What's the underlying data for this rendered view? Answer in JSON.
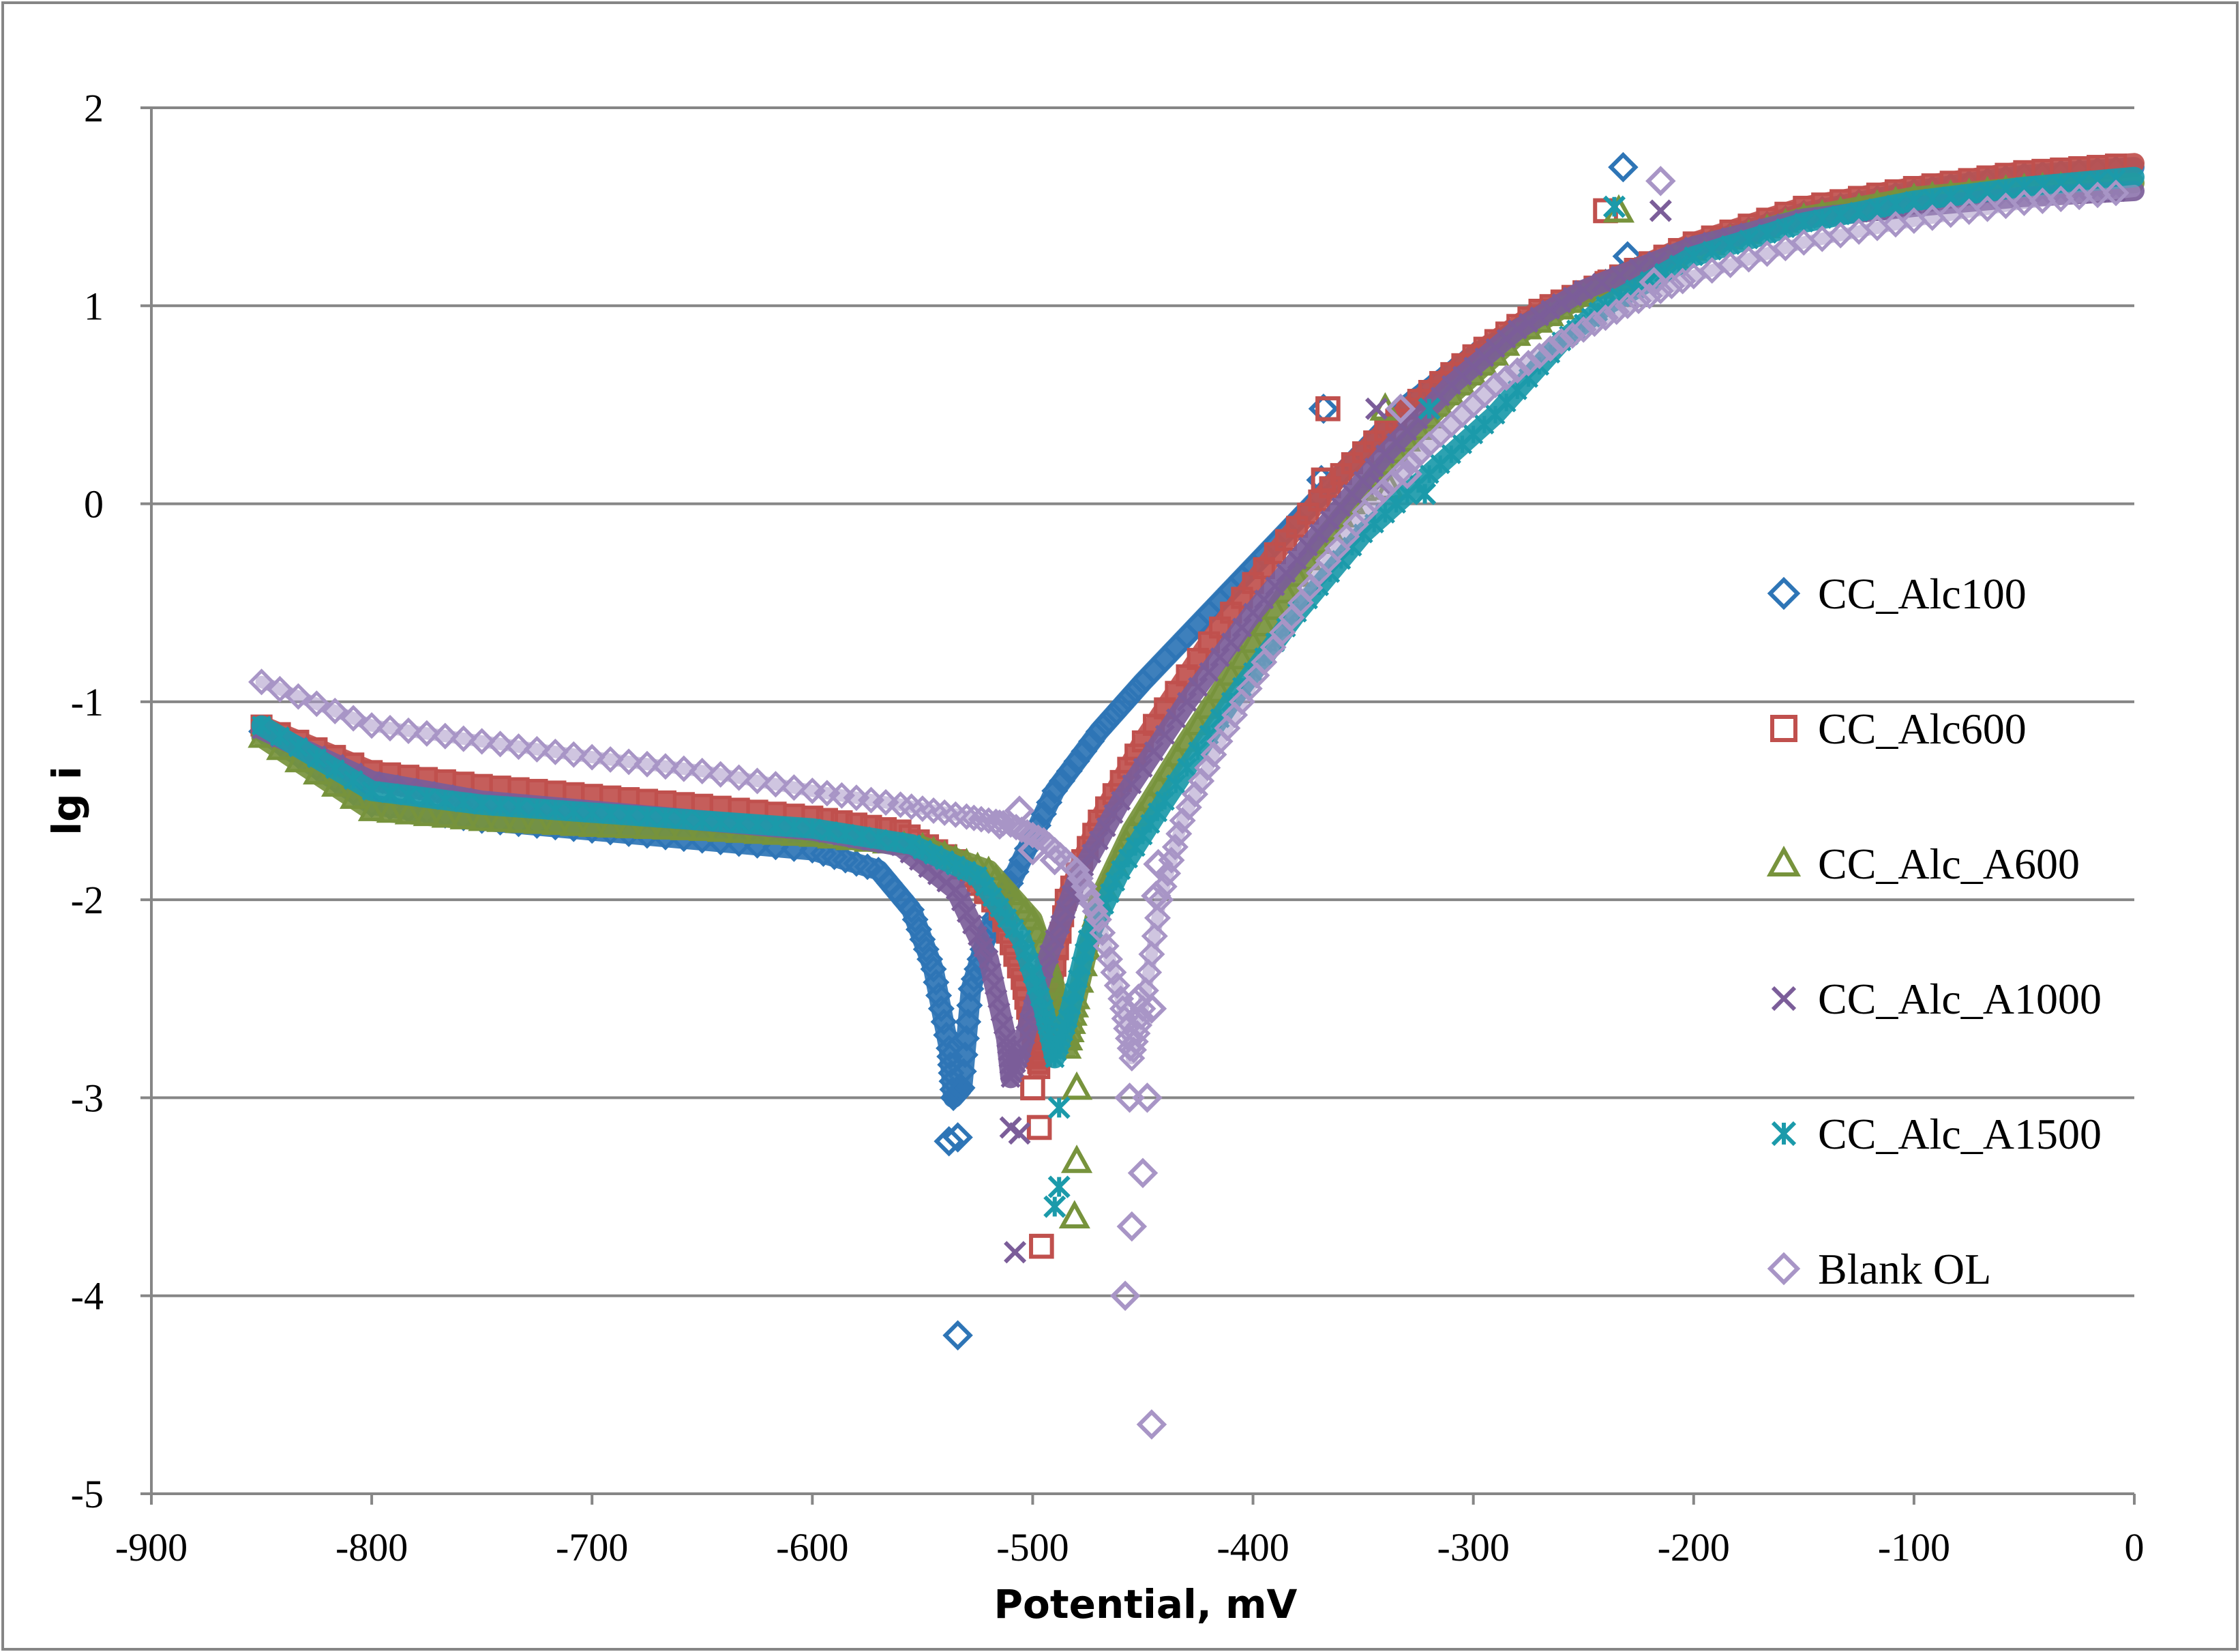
{
  "chart_data": {
    "type": "scatter",
    "title": "",
    "xlabel": "Potential, mV",
    "ylabel": "lg i",
    "xlim": [
      -900,
      0
    ],
    "ylim": [
      -5,
      2
    ],
    "x_ticks": [
      -900,
      -800,
      -700,
      -600,
      -500,
      -400,
      -300,
      -200,
      -100,
      0
    ],
    "y_ticks": [
      2,
      1,
      0,
      -1,
      -2,
      -3,
      -4,
      -5
    ],
    "x_tick_labels": [
      "-900",
      "-800",
      "-700",
      "-600",
      "-500",
      "-400",
      "-300",
      "-200",
      "-100",
      "0"
    ],
    "y_tick_labels": [
      "2",
      "1",
      "0",
      "-1",
      "-2",
      "-3",
      "-4",
      "-5"
    ],
    "grid": "horizontal",
    "legend_position": "right",
    "series": [
      {
        "name": "CC_Alc100",
        "marker": "diamond",
        "color": "#2e75b6",
        "curve": [
          [
            -850,
            -1.15
          ],
          [
            -800,
            -1.52
          ],
          [
            -750,
            -1.6
          ],
          [
            -700,
            -1.65
          ],
          [
            -650,
            -1.7
          ],
          [
            -600,
            -1.75
          ],
          [
            -570,
            -1.85
          ],
          [
            -555,
            -2.05
          ],
          [
            -545,
            -2.35
          ],
          [
            -538,
            -2.75
          ],
          [
            -536,
            -3.0
          ],
          [
            -532,
            -2.95
          ],
          [
            -528,
            -2.45
          ],
          [
            -520,
            -2.15
          ],
          [
            -505,
            -1.8
          ],
          [
            -490,
            -1.45
          ],
          [
            -470,
            -1.15
          ],
          [
            -450,
            -0.9
          ],
          [
            -420,
            -0.55
          ],
          [
            -390,
            -0.2
          ],
          [
            -360,
            0.15
          ],
          [
            -330,
            0.5
          ],
          [
            -300,
            0.75
          ],
          [
            -270,
            0.95
          ],
          [
            -240,
            1.12
          ],
          [
            -200,
            1.3
          ],
          [
            -150,
            1.47
          ],
          [
            -100,
            1.58
          ],
          [
            -50,
            1.66
          ],
          [
            0,
            1.7
          ]
        ],
        "outliers": [
          [
            -232,
            1.7
          ],
          [
            -230,
            1.25
          ],
          [
            -368,
            0.48
          ],
          [
            -369,
            0.12
          ],
          [
            -538,
            -3.22
          ],
          [
            -534,
            -3.2
          ],
          [
            -534,
            -4.2
          ]
        ]
      },
      {
        "name": "CC_Alc600",
        "marker": "square",
        "color": "#c0504d",
        "curve": [
          [
            -850,
            -1.12
          ],
          [
            -800,
            -1.35
          ],
          [
            -750,
            -1.42
          ],
          [
            -700,
            -1.47
          ],
          [
            -650,
            -1.52
          ],
          [
            -600,
            -1.58
          ],
          [
            -560,
            -1.65
          ],
          [
            -535,
            -1.8
          ],
          [
            -515,
            -2.05
          ],
          [
            -505,
            -2.4
          ],
          [
            -500,
            -2.7
          ],
          [
            -497,
            -2.85
          ],
          [
            -492,
            -2.5
          ],
          [
            -485,
            -2.0
          ],
          [
            -470,
            -1.6
          ],
          [
            -450,
            -1.2
          ],
          [
            -420,
            -0.7
          ],
          [
            -390,
            -0.25
          ],
          [
            -360,
            0.15
          ],
          [
            -330,
            0.48
          ],
          [
            -300,
            0.75
          ],
          [
            -270,
            0.98
          ],
          [
            -240,
            1.12
          ],
          [
            -200,
            1.32
          ],
          [
            -150,
            1.5
          ],
          [
            -100,
            1.6
          ],
          [
            -50,
            1.68
          ],
          [
            0,
            1.72
          ]
        ],
        "outliers": [
          [
            -240,
            1.48
          ],
          [
            -238,
            1.12
          ],
          [
            -366,
            0.48
          ],
          [
            -368,
            0.12
          ],
          [
            -500,
            -2.95
          ],
          [
            -497,
            -3.15
          ],
          [
            -496,
            -3.75
          ]
        ]
      },
      {
        "name": "CC_Alc_A600",
        "marker": "triangle",
        "color": "#77933c",
        "curve": [
          [
            -850,
            -1.18
          ],
          [
            -800,
            -1.55
          ],
          [
            -750,
            -1.6
          ],
          [
            -700,
            -1.63
          ],
          [
            -650,
            -1.65
          ],
          [
            -600,
            -1.68
          ],
          [
            -550,
            -1.73
          ],
          [
            -520,
            -1.85
          ],
          [
            -500,
            -2.1
          ],
          [
            -488,
            -2.5
          ],
          [
            -484,
            -2.75
          ],
          [
            -480,
            -2.5
          ],
          [
            -470,
            -2.0
          ],
          [
            -455,
            -1.65
          ],
          [
            -430,
            -1.2
          ],
          [
            -400,
            -0.7
          ],
          [
            -370,
            -0.2
          ],
          [
            -340,
            0.2
          ],
          [
            -310,
            0.55
          ],
          [
            -280,
            0.85
          ],
          [
            -250,
            1.05
          ],
          [
            -200,
            1.28
          ],
          [
            -150,
            1.45
          ],
          [
            -100,
            1.55
          ],
          [
            -50,
            1.6
          ],
          [
            0,
            1.62
          ]
        ],
        "outliers": [
          [
            -234,
            1.48
          ],
          [
            -340,
            0.48
          ],
          [
            -338,
            0.08
          ],
          [
            -480,
            -2.95
          ],
          [
            -480,
            -3.32
          ],
          [
            -481,
            -3.6
          ]
        ]
      },
      {
        "name": "CC_Alc_A1000",
        "marker": "x",
        "color": "#7b5d99",
        "curve": [
          [
            -850,
            -1.14
          ],
          [
            -800,
            -1.4
          ],
          [
            -750,
            -1.5
          ],
          [
            -700,
            -1.55
          ],
          [
            -650,
            -1.6
          ],
          [
            -600,
            -1.65
          ],
          [
            -560,
            -1.73
          ],
          [
            -535,
            -1.95
          ],
          [
            -520,
            -2.3
          ],
          [
            -512,
            -2.7
          ],
          [
            -510,
            -2.9
          ],
          [
            -505,
            -2.75
          ],
          [
            -495,
            -2.35
          ],
          [
            -480,
            -1.9
          ],
          [
            -460,
            -1.5
          ],
          [
            -430,
            -1.0
          ],
          [
            -400,
            -0.55
          ],
          [
            -370,
            -0.15
          ],
          [
            -340,
            0.25
          ],
          [
            -310,
            0.6
          ],
          [
            -280,
            0.88
          ],
          [
            -250,
            1.08
          ],
          [
            -200,
            1.3
          ],
          [
            -150,
            1.44
          ],
          [
            -100,
            1.5
          ],
          [
            -50,
            1.55
          ],
          [
            0,
            1.58
          ]
        ],
        "outliers": [
          [
            -215,
            1.48
          ],
          [
            -344,
            0.48
          ],
          [
            -342,
            0.1
          ],
          [
            -510,
            -3.15
          ],
          [
            -506,
            -3.18
          ],
          [
            -508,
            -3.78
          ]
        ]
      },
      {
        "name": "CC_Alc_A1500",
        "marker": "asterisk",
        "color": "#1b9aaa",
        "curve": [
          [
            -850,
            -1.12
          ],
          [
            -800,
            -1.45
          ],
          [
            -750,
            -1.52
          ],
          [
            -700,
            -1.56
          ],
          [
            -650,
            -1.6
          ],
          [
            -600,
            -1.64
          ],
          [
            -555,
            -1.72
          ],
          [
            -525,
            -1.88
          ],
          [
            -505,
            -2.2
          ],
          [
            -495,
            -2.55
          ],
          [
            -490,
            -2.8
          ],
          [
            -484,
            -2.6
          ],
          [
            -475,
            -2.2
          ],
          [
            -460,
            -1.85
          ],
          [
            -440,
            -1.5
          ],
          [
            -410,
            -1.0
          ],
          [
            -380,
            -0.55
          ],
          [
            -350,
            -0.15
          ],
          [
            -320,
            0.15
          ],
          [
            -290,
            0.45
          ],
          [
            -260,
            0.82
          ],
          [
            -240,
            1.0
          ],
          [
            -200,
            1.25
          ],
          [
            -150,
            1.42
          ],
          [
            -100,
            1.53
          ],
          [
            -50,
            1.6
          ],
          [
            0,
            1.65
          ]
        ],
        "outliers": [
          [
            -236,
            1.5
          ],
          [
            -320,
            0.48
          ],
          [
            -322,
            0.05
          ],
          [
            -488,
            -3.05
          ],
          [
            -488,
            -3.45
          ],
          [
            -490,
            -3.55
          ]
        ]
      },
      {
        "name": "Blank OL",
        "marker": "diamond",
        "color": "#a895c6",
        "curve": [
          [
            -850,
            -0.9
          ],
          [
            -800,
            -1.12
          ],
          [
            -750,
            -1.2
          ],
          [
            -700,
            -1.28
          ],
          [
            -650,
            -1.35
          ],
          [
            -600,
            -1.45
          ],
          [
            -560,
            -1.52
          ],
          [
            -530,
            -1.58
          ],
          [
            -510,
            -1.62
          ],
          [
            -495,
            -1.7
          ],
          [
            -480,
            -1.85
          ],
          [
            -470,
            -2.1
          ],
          [
            -460,
            -2.5
          ],
          [
            -455,
            -2.8
          ],
          [
            -450,
            -2.55
          ],
          [
            -442,
            -2.0
          ],
          [
            -432,
            -1.6
          ],
          [
            -415,
            -1.2
          ],
          [
            -395,
            -0.8
          ],
          [
            -370,
            -0.35
          ],
          [
            -345,
            0.02
          ],
          [
            -320,
            0.3
          ],
          [
            -290,
            0.6
          ],
          [
            -260,
            0.82
          ],
          [
            -230,
            1.0
          ],
          [
            -200,
            1.15
          ],
          [
            -150,
            1.32
          ],
          [
            -100,
            1.43
          ],
          [
            -50,
            1.52
          ],
          [
            0,
            1.58
          ]
        ],
        "outliers": [
          [
            -215,
            1.63
          ],
          [
            -218,
            1.12
          ],
          [
            -333,
            0.48
          ],
          [
            -330,
            0.15
          ],
          [
            -456,
            -3.0
          ],
          [
            -448,
            -3.0
          ],
          [
            -450,
            -3.38
          ],
          [
            -455,
            -3.65
          ],
          [
            -458,
            -4.0
          ],
          [
            -446,
            -4.65
          ],
          [
            -452,
            -2.5
          ],
          [
            -446,
            -2.55
          ],
          [
            -444,
            -1.98
          ],
          [
            -443,
            -1.82
          ],
          [
            -506,
            -1.55
          ],
          [
            -515,
            -1.62
          ],
          [
            -500,
            -1.75
          ],
          [
            -490,
            -1.8
          ]
        ]
      }
    ]
  }
}
